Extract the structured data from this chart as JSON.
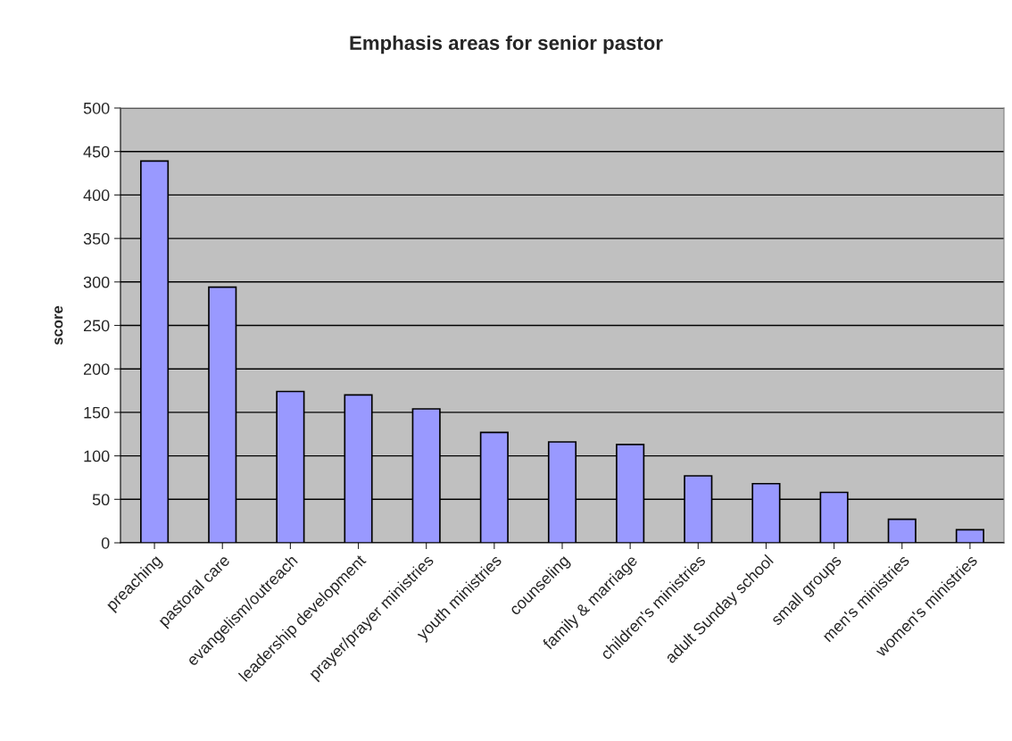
{
  "chart_data": {
    "type": "bar",
    "title": "Emphasis areas for senior pastor",
    "ylabel": "score",
    "categories": [
      "preaching",
      "pastoral care",
      "evangelism/outreach",
      "leadership development",
      "prayer/prayer ministries",
      "youth ministries",
      "counseling",
      "family & marriage",
      "children's ministries",
      "adult Sunday school",
      "small groups",
      "men's ministries",
      "women's ministries"
    ],
    "values": [
      439,
      294,
      174,
      170,
      154,
      127,
      116,
      113,
      77,
      68,
      58,
      27,
      15
    ],
    "color": "#9999ff",
    "ylim": [
      0,
      500
    ],
    "yticks": [
      0,
      50,
      100,
      150,
      200,
      250,
      300,
      350,
      400,
      450,
      500
    ],
    "grid": "y",
    "legend": false
  }
}
